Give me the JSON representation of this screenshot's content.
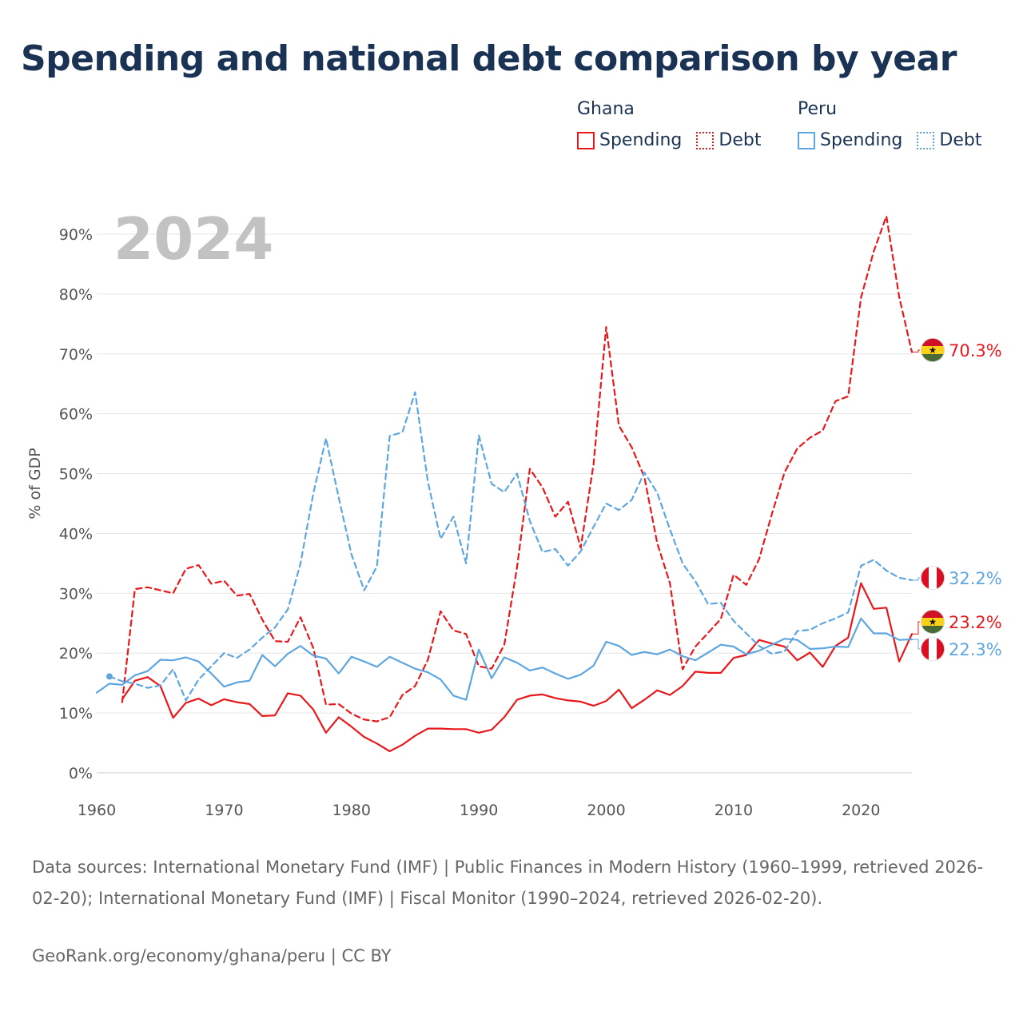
{
  "title": "Spending and national debt comparison by year",
  "legend": {
    "groups": [
      {
        "country": "Ghana",
        "color": "#e8191c",
        "items": [
          {
            "label": "Spending",
            "style": "solid"
          },
          {
            "label": "Debt",
            "style": "dotted"
          }
        ]
      },
      {
        "country": "Peru",
        "color": "#5ea6e0",
        "items": [
          {
            "label": "Spending",
            "style": "solid"
          },
          {
            "label": "Debt",
            "style": "dotted"
          }
        ]
      }
    ]
  },
  "year_watermark": "2024",
  "colors": {
    "ghana": "#e8191c",
    "peru": "#5ea6e0",
    "grid": "#e6e6e6",
    "watermark": "#c2c2c2"
  },
  "chart_data": {
    "type": "line",
    "title": "Spending and national debt comparison by year",
    "xlabel": "",
    "ylabel": "% of GDP",
    "xlim": [
      1960,
      2024
    ],
    "ylim": [
      0,
      90
    ],
    "xticks": [
      1960,
      1970,
      1980,
      1990,
      2000,
      2010,
      2020
    ],
    "yticks": [
      0,
      10,
      20,
      30,
      40,
      50,
      60,
      70,
      80,
      90
    ],
    "ytick_labels": [
      "0%",
      "10%",
      "20%",
      "30%",
      "40%",
      "50%",
      "60%",
      "70%",
      "80%",
      "90%"
    ],
    "series": [
      {
        "name": "Ghana Spending",
        "country": "Ghana",
        "color": "#e8191c",
        "dash": "solid",
        "x": [
          1962,
          1963,
          1964,
          1965,
          1966,
          1967,
          1968,
          1969,
          1970,
          1971,
          1972,
          1973,
          1974,
          1975,
          1976,
          1977,
          1978,
          1979,
          1980,
          1981,
          1982,
          1983,
          1984,
          1985,
          1986,
          1987,
          1988,
          1989,
          1990,
          1991,
          1992,
          1993,
          1994,
          1995,
          1996,
          1997,
          1998,
          1999,
          2000,
          2001,
          2002,
          2003,
          2004,
          2005,
          2006,
          2007,
          2008,
          2009,
          2010,
          2011,
          2012,
          2013,
          2014,
          2015,
          2016,
          2017,
          2018,
          2019,
          2020,
          2021,
          2022,
          2023,
          2024
        ],
        "values": [
          12.3,
          15.4,
          16.0,
          14.5,
          9.2,
          11.7,
          12.4,
          11.3,
          12.3,
          11.8,
          11.5,
          9.5,
          9.6,
          13.3,
          12.9,
          10.6,
          6.7,
          9.3,
          7.7,
          6.0,
          4.9,
          3.6,
          4.7,
          6.2,
          7.4,
          7.4,
          7.3,
          7.3,
          6.7,
          7.2,
          9.3,
          12.2,
          12.9,
          13.1,
          12.5,
          12.1,
          11.9,
          11.2,
          12.0,
          13.9,
          10.8,
          12.2,
          13.8,
          13.0,
          14.5,
          16.9,
          16.7,
          16.7,
          19.2,
          19.7,
          22.2,
          21.6,
          21.1,
          18.8,
          20.1,
          17.7,
          21.2,
          22.6,
          31.7,
          27.4,
          27.6,
          18.6,
          23.2
        ],
        "end_label": "23.2%"
      },
      {
        "name": "Ghana Debt",
        "country": "Ghana",
        "color": "#e8191c",
        "dash": "dashed",
        "x": [
          1962,
          1963,
          1964,
          1965,
          1966,
          1967,
          1968,
          1969,
          1970,
          1971,
          1972,
          1973,
          1974,
          1975,
          1976,
          1977,
          1978,
          1979,
          1980,
          1981,
          1982,
          1983,
          1984,
          1985,
          1986,
          1987,
          1988,
          1989,
          1990,
          1991,
          1992,
          1993,
          1994,
          1995,
          1996,
          1997,
          1998,
          1999,
          2000,
          2001,
          2002,
          2003,
          2004,
          2005,
          2006,
          2007,
          2008,
          2009,
          2010,
          2011,
          2012,
          2013,
          2014,
          2015,
          2016,
          2017,
          2018,
          2019,
          2020,
          2021,
          2022,
          2023,
          2024
        ],
        "values": [
          11.8,
          30.7,
          31.0,
          30.5,
          30.0,
          34.1,
          34.7,
          31.6,
          32.1,
          29.6,
          29.9,
          25.6,
          22.0,
          21.9,
          26.0,
          20.9,
          11.4,
          11.5,
          9.9,
          8.9,
          8.6,
          9.3,
          13.0,
          14.5,
          18.9,
          27.0,
          23.8,
          23.2,
          17.8,
          17.4,
          21.4,
          34.3,
          50.8,
          47.7,
          42.8,
          45.3,
          37.6,
          51.5,
          74.5,
          58.0,
          54.4,
          49.4,
          38.4,
          31.7,
          17.3,
          21.1,
          23.4,
          25.7,
          33.1,
          31.4,
          35.7,
          43.2,
          50.2,
          54.2,
          56.0,
          57.2,
          62.1,
          62.9,
          79.4,
          87.1,
          93.0,
          79.5,
          70.3
        ],
        "end_label": "70.3%"
      },
      {
        "name": "Peru Spending",
        "country": "Peru",
        "color": "#5ea6e0",
        "dash": "solid",
        "x": [
          1960,
          1961,
          1962,
          1963,
          1964,
          1965,
          1966,
          1967,
          1968,
          1969,
          1970,
          1971,
          1972,
          1973,
          1974,
          1975,
          1976,
          1977,
          1978,
          1979,
          1980,
          1981,
          1982,
          1983,
          1984,
          1985,
          1986,
          1987,
          1988,
          1989,
          1990,
          1991,
          1992,
          1993,
          1994,
          1995,
          1996,
          1997,
          1998,
          1999,
          2000,
          2001,
          2002,
          2003,
          2004,
          2005,
          2006,
          2007,
          2008,
          2009,
          2010,
          2011,
          2012,
          2013,
          2014,
          2015,
          2016,
          2017,
          2018,
          2019,
          2020,
          2021,
          2022,
          2023,
          2024
        ],
        "values": [
          13.4,
          14.9,
          14.7,
          16.3,
          17.0,
          18.9,
          18.8,
          19.3,
          18.6,
          16.6,
          14.4,
          15.1,
          15.4,
          19.7,
          17.8,
          19.9,
          21.2,
          19.6,
          19.1,
          16.6,
          19.4,
          18.6,
          17.7,
          19.4,
          18.4,
          17.4,
          16.8,
          15.6,
          12.9,
          12.2,
          20.6,
          15.8,
          19.3,
          18.4,
          17.1,
          17.6,
          16.6,
          15.7,
          16.4,
          17.9,
          21.9,
          21.2,
          19.7,
          20.2,
          19.8,
          20.6,
          19.5,
          18.8,
          20.1,
          21.4,
          21.1,
          19.8,
          20.4,
          21.4,
          22.4,
          22.2,
          20.7,
          20.8,
          21.1,
          21.0,
          25.8,
          23.3,
          23.3,
          22.2,
          22.3
        ],
        "end_label": "22.3%"
      },
      {
        "name": "Peru Debt",
        "country": "Peru",
        "color": "#5ea6e0",
        "dash": "dashed",
        "x": [
          1961,
          1962,
          1963,
          1964,
          1965,
          1966,
          1967,
          1968,
          1969,
          1970,
          1971,
          1972,
          1973,
          1974,
          1975,
          1976,
          1977,
          1978,
          1979,
          1980,
          1981,
          1982,
          1983,
          1984,
          1985,
          1986,
          1987,
          1988,
          1989,
          1990,
          1991,
          1992,
          1993,
          1994,
          1995,
          1996,
          1997,
          1998,
          1999,
          2000,
          2001,
          2002,
          2003,
          2004,
          2005,
          2006,
          2007,
          2008,
          2009,
          2010,
          2011,
          2012,
          2013,
          2014,
          2015,
          2016,
          2017,
          2018,
          2019,
          2020,
          2021,
          2022,
          2023,
          2024
        ],
        "values": [
          16.1,
          15.3,
          14.9,
          14.2,
          14.6,
          17.3,
          12.1,
          15.6,
          17.8,
          20.0,
          19.2,
          20.6,
          22.6,
          24.3,
          27.3,
          35.0,
          46.6,
          55.9,
          46.0,
          36.5,
          30.5,
          34.5,
          56.3,
          56.9,
          63.6,
          48.6,
          39.1,
          42.8,
          35.0,
          56.4,
          48.3,
          46.9,
          50.0,
          42.1,
          36.9,
          37.4,
          34.6,
          37.0,
          41.1,
          45.0,
          43.9,
          45.6,
          50.2,
          46.8,
          40.7,
          35.0,
          32.0,
          28.2,
          28.4,
          25.4,
          23.3,
          21.2,
          19.9,
          20.3,
          23.7,
          23.9,
          25.0,
          25.8,
          26.8,
          34.6,
          35.6,
          33.8,
          32.6,
          32.2
        ],
        "end_label": "32.2%"
      }
    ]
  },
  "sources": "Data sources: International Monetary Fund (IMF) | Public Finances in Modern History (1960–1999, retrieved 2026-02-20); International Monetary Fund (IMF) | Fiscal Monitor (1990–2024, retrieved 2026-02-20).",
  "credit": "GeoRank.org/economy/ghana/peru | CC BY"
}
